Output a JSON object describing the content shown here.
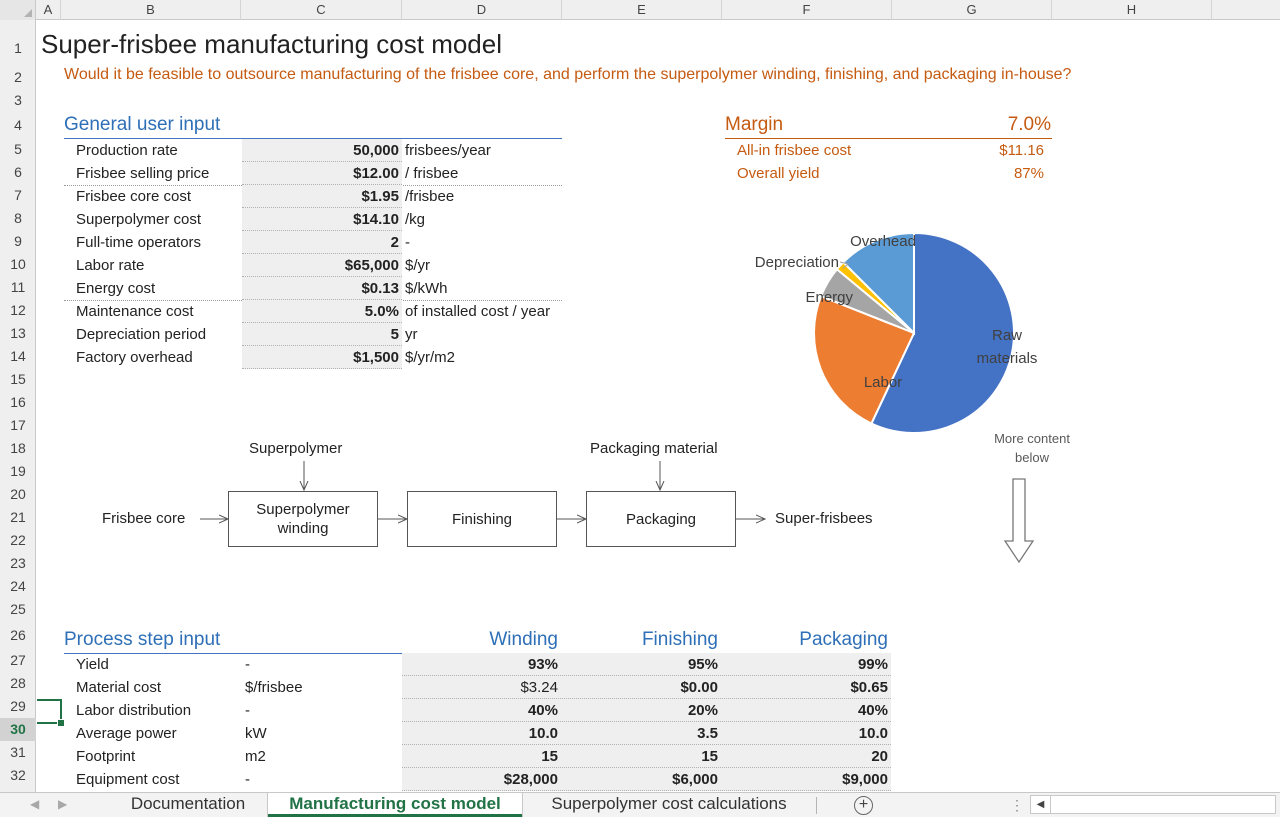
{
  "columns": [
    "A",
    "B",
    "C",
    "D",
    "E",
    "F",
    "G",
    "H"
  ],
  "rows": [
    "1",
    "2",
    "3",
    "4",
    "5",
    "6",
    "7",
    "8",
    "9",
    "10",
    "11",
    "12",
    "13",
    "14",
    "15",
    "16",
    "17",
    "18",
    "19",
    "20",
    "21",
    "22",
    "23",
    "24",
    "25",
    "26",
    "27",
    "28",
    "29",
    "30",
    "31",
    "32"
  ],
  "selected_row": "30",
  "title": "Super-frisbee manufacturing cost model",
  "subtitle": "Would it be feasible to outsource manufacturing of the frisbee core, and perform the superpolymer winding, finishing, and packaging in-house?",
  "general_input": {
    "heading": "General user input",
    "rows": [
      {
        "label": "Production rate",
        "value": "50,000",
        "unit": "frisbees/year"
      },
      {
        "label": "Frisbee selling price",
        "value": "$12.00",
        "unit": "/ frisbee"
      },
      {
        "label": "Frisbee core cost",
        "value": "$1.95",
        "unit": "/frisbee"
      },
      {
        "label": "Superpolymer cost",
        "value": "$14.10",
        "unit": "/kg"
      },
      {
        "label": "Full-time operators",
        "value": "2",
        "unit": "-"
      },
      {
        "label": "Labor rate",
        "value": "$65,000",
        "unit": "$/yr"
      },
      {
        "label": "Energy cost",
        "value": "$0.13",
        "unit": "$/kWh"
      },
      {
        "label": "Maintenance cost",
        "value": "5.0%",
        "unit": "of installed cost / year"
      },
      {
        "label": "Depreciation period",
        "value": "5",
        "unit": "yr"
      },
      {
        "label": "Factory overhead",
        "value": "$1,500",
        "unit": "$/yr/m2"
      }
    ]
  },
  "margin": {
    "label": "Margin",
    "value": "7.0%",
    "rows": [
      {
        "label": "All-in frisbee cost",
        "value": "$11.16"
      },
      {
        "label": "Overall yield",
        "value": "87%"
      }
    ]
  },
  "chart_data": {
    "type": "pie",
    "title": "",
    "labels": [
      "Raw materials",
      "Labor",
      "Energy",
      "Depreciation",
      "Overhead"
    ],
    "label_lines": [
      [
        "Raw",
        "materials"
      ],
      [
        "Labor"
      ],
      [
        "Energy"
      ],
      [
        "Depreciation"
      ],
      [
        "Overhead"
      ]
    ],
    "values": [
      57,
      24,
      5,
      1.5,
      12.5
    ],
    "colors": [
      "#4472c4",
      "#ed7d31",
      "#a5a5a5",
      "#ffc000",
      "#5b9bd5"
    ],
    "legend": "none"
  },
  "more_content": [
    "More content",
    "below"
  ],
  "flow": {
    "input_core": "Frisbee core",
    "input_polymer": "Superpolymer",
    "input_packaging": "Packaging material",
    "step1": [
      "Superpolymer",
      "winding"
    ],
    "step2": "Finishing",
    "step3": "Packaging",
    "output": "Super-frisbees"
  },
  "process_input": {
    "heading": "Process step input",
    "steps": [
      "Winding",
      "Finishing",
      "Packaging"
    ],
    "rows": [
      {
        "label": "Yield",
        "unit": "-",
        "values": [
          "93%",
          "95%",
          "99%"
        ],
        "bold": [
          true,
          true,
          true
        ]
      },
      {
        "label": "Material cost",
        "unit": "$/frisbee",
        "values": [
          "$3.24",
          "$0.00",
          "$0.65"
        ],
        "bold": [
          false,
          true,
          true
        ]
      },
      {
        "label": "Labor distribution",
        "unit": "-",
        "values": [
          "40%",
          "20%",
          "40%"
        ],
        "bold": [
          true,
          true,
          true
        ]
      },
      {
        "label": "Average power",
        "unit": "kW",
        "values": [
          "10.0",
          "3.5",
          "10.0"
        ],
        "bold": [
          true,
          true,
          true
        ]
      },
      {
        "label": "Footprint",
        "unit": "m2",
        "values": [
          "15",
          "15",
          "20"
        ],
        "bold": [
          true,
          true,
          true
        ]
      },
      {
        "label": "Equipment cost",
        "unit": "-",
        "values": [
          "$28,000",
          "$6,000",
          "$9,000"
        ],
        "bold": [
          true,
          true,
          true
        ]
      }
    ]
  },
  "tabs": {
    "items": [
      "Documentation",
      "Manufacturing cost model",
      "Superpolymer cost calculations"
    ],
    "active": "Manufacturing cost model"
  }
}
